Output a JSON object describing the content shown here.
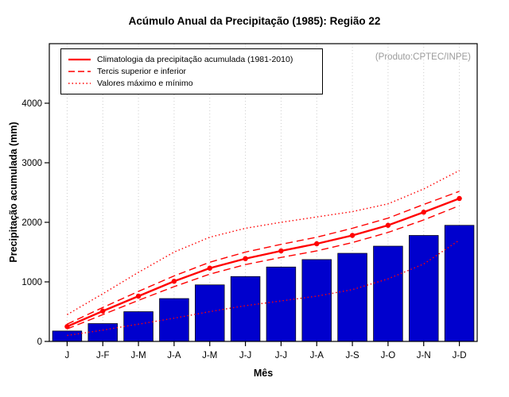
{
  "chart_data": {
    "type": "bar",
    "title": "Acúmulo Anual da Precipitação (1985): Região 22",
    "xlabel": "Mês",
    "ylabel": "Precipitação acumulada (mm)",
    "annotation": "(Produto:CPTEC/INPE)",
    "categories": [
      "J",
      "J-F",
      "J-M",
      "J-A",
      "J-M",
      "J-J",
      "J-J",
      "J-A",
      "J-S",
      "J-O",
      "J-N",
      "J-D"
    ],
    "ylim": [
      0,
      4000
    ],
    "yticks": [
      0,
      1000,
      2000,
      3000,
      4000
    ],
    "grid": "vertical-dotted",
    "legend_position": "top-left",
    "bar_color": "#0000CD",
    "bar_border_color": "#000000",
    "line_color": "#FF0000",
    "bars": [
      175,
      300,
      500,
      720,
      950,
      1090,
      1250,
      1375,
      1480,
      1600,
      1780,
      1950
    ],
    "line_series": [
      {
        "name": "Climatologia da precipitação acumulada (1981-2010)",
        "style": "solid",
        "marker": "circle",
        "values": [
          250,
          510,
          760,
          1010,
          1230,
          1390,
          1520,
          1640,
          1780,
          1950,
          2170,
          2400
        ]
      },
      {
        "name": "Tercil superior",
        "style": "dashed",
        "values": [
          290,
          570,
          840,
          1100,
          1330,
          1500,
          1630,
          1750,
          1900,
          2070,
          2300,
          2520
        ]
      },
      {
        "name": "Tercil inferior",
        "style": "dashed",
        "values": [
          210,
          450,
          690,
          920,
          1130,
          1290,
          1410,
          1520,
          1660,
          1830,
          2040,
          2280
        ]
      },
      {
        "name": "Valor máximo",
        "style": "dotted",
        "values": [
          450,
          800,
          1160,
          1500,
          1750,
          1900,
          2000,
          2090,
          2180,
          2310,
          2560,
          2870
        ]
      },
      {
        "name": "Valor mínimo",
        "style": "dotted",
        "values": [
          100,
          190,
          290,
          390,
          500,
          600,
          680,
          760,
          870,
          1050,
          1300,
          1700
        ]
      }
    ],
    "legend": [
      {
        "label": "Climatologia da precipitação acumulada (1981-2010)",
        "style": "solid"
      },
      {
        "label": "Tercis superior e inferior",
        "style": "dashed"
      },
      {
        "label": "Valores máximo e mínimo",
        "style": "dotted"
      }
    ]
  }
}
